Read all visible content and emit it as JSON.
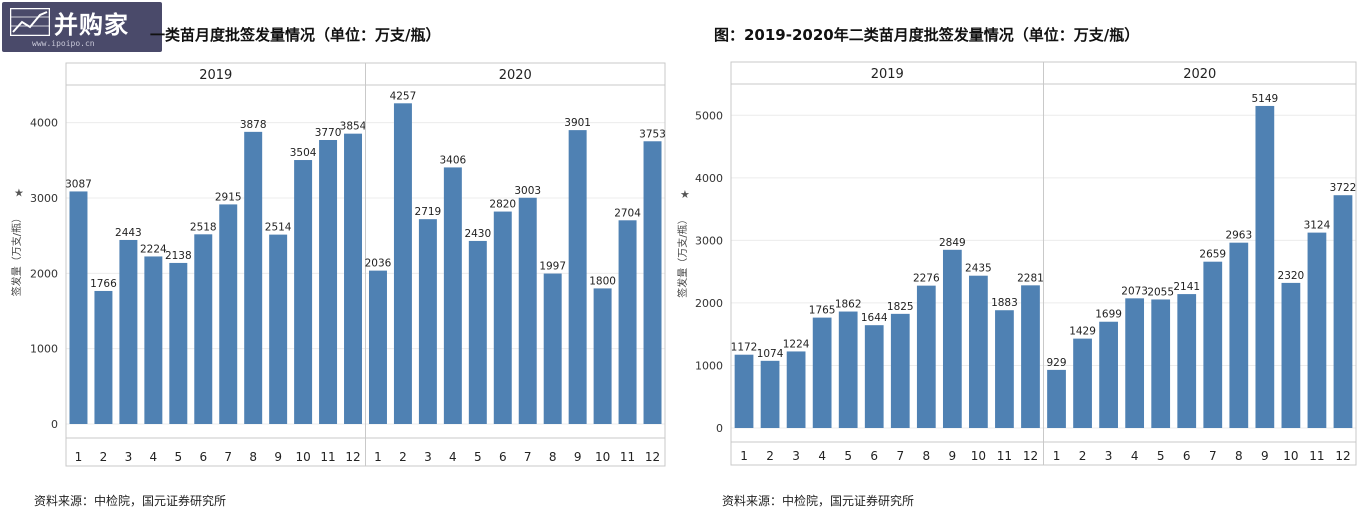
{
  "branding": {
    "name": "并购家",
    "url": "www.ipoipo.cn"
  },
  "titles": {
    "left": "一类苗月度批签发量情况（单位：万支/瓶）",
    "right": "图：2019-2020年二类苗月度批签发量情况（单位：万支/瓶）"
  },
  "source": "资料来源：中检院，国元证券研究所",
  "colors": {
    "bar": "#4f81b3",
    "grid": "#ececec",
    "frame": "#c9c9c9"
  },
  "chart_data": [
    {
      "type": "bar",
      "title": "一类苗月度批签发量情况（单位：万支/瓶）",
      "ylabel": "签发量（万支/瓶）",
      "ylim": [
        0,
        4500
      ],
      "yticks": [
        0,
        1000,
        2000,
        3000,
        4000
      ],
      "grid": true,
      "categories": [
        "1",
        "2",
        "3",
        "4",
        "5",
        "6",
        "7",
        "8",
        "9",
        "10",
        "11",
        "12"
      ],
      "series": [
        {
          "name": "2019",
          "values": [
            3087,
            1766,
            2443,
            2224,
            2138,
            2518,
            2915,
            3878,
            2514,
            3504,
            3770,
            3854
          ]
        },
        {
          "name": "2020",
          "values": [
            2036,
            4257,
            2719,
            3406,
            2430,
            2820,
            3003,
            1997,
            3901,
            1800,
            2704,
            3753
          ]
        }
      ]
    },
    {
      "type": "bar",
      "title": "图：2019-2020年二类苗月度批签发量情况（单位：万支/瓶）",
      "ylabel": "签发量（万支/瓶）",
      "ylim": [
        0,
        5500
      ],
      "yticks": [
        0,
        1000,
        2000,
        3000,
        4000,
        5000
      ],
      "grid": true,
      "categories": [
        "1",
        "2",
        "3",
        "4",
        "5",
        "6",
        "7",
        "8",
        "9",
        "10",
        "11",
        "12"
      ],
      "series": [
        {
          "name": "2019",
          "values": [
            1172,
            1074,
            1224,
            1765,
            1862,
            1644,
            1825,
            2276,
            2849,
            2435,
            1883,
            2281
          ]
        },
        {
          "name": "2020",
          "values": [
            929,
            1429,
            1699,
            2073,
            2055,
            2141,
            2659,
            2963,
            5149,
            2320,
            3124,
            3722
          ]
        }
      ]
    }
  ]
}
